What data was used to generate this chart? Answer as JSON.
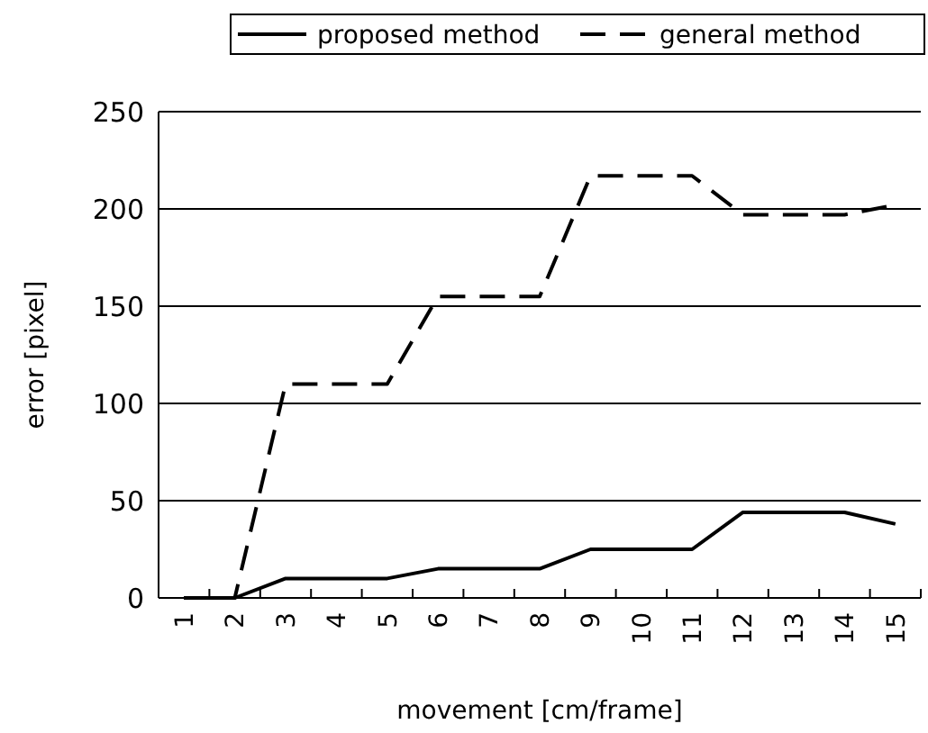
{
  "chart_data": {
    "type": "line",
    "xlabel": "movement [cm/frame]",
    "ylabel": "error [pixel]",
    "categories": [
      "1",
      "2",
      "3",
      "4",
      "5",
      "6",
      "7",
      "8",
      "9",
      "10",
      "11",
      "12",
      "13",
      "14",
      "15"
    ],
    "series": [
      {
        "name": "proposed method",
        "color": "#000000",
        "line_style": "solid",
        "values": [
          0,
          0,
          10,
          10,
          10,
          15,
          15,
          15,
          25,
          25,
          25,
          44,
          44,
          44,
          38
        ]
      },
      {
        "name": "general method",
        "color": "#000000",
        "line_style": "dashed",
        "values": [
          0,
          0,
          110,
          110,
          110,
          155,
          155,
          155,
          217,
          217,
          217,
          197,
          197,
          197,
          202
        ]
      }
    ],
    "ylim": [
      0,
      250
    ],
    "yticks": [
      0,
      50,
      100,
      150,
      200,
      250
    ],
    "grid": "y",
    "legend": "top",
    "marker": "none"
  }
}
